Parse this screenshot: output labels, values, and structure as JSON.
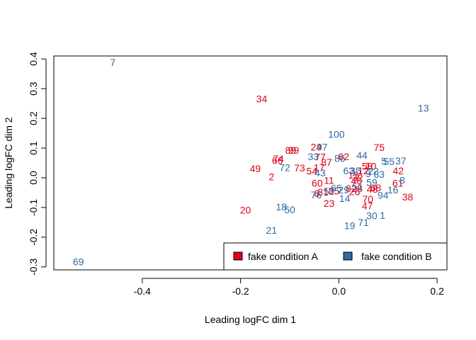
{
  "chart_data": {
    "type": "scatter",
    "title": "",
    "xlabel": "Leading logFC dim 1",
    "ylabel": "Leading logFC dim 2",
    "xlim": [
      -0.58,
      0.22
    ],
    "ylim": [
      -0.31,
      0.41
    ],
    "x_ticks": [
      "-0.4",
      "-0.2",
      "0.0",
      "0.2"
    ],
    "x_tick_values": [
      -0.4,
      -0.2,
      0.0,
      0.2
    ],
    "y_ticks": [
      "-0.3",
      "-0.2",
      "-0.1",
      "0.0",
      "0.1",
      "0.2",
      "0.3",
      "0.4"
    ],
    "y_tick_values": [
      -0.3,
      -0.2,
      -0.1,
      0.0,
      0.1,
      0.2,
      0.3,
      0.4
    ],
    "grid": false,
    "legend": {
      "placement": "bottom-right",
      "entries": [
        {
          "name": "fake condition A",
          "color": "#e0001a"
        },
        {
          "name": "fake condition B",
          "color": "#2f6aa3"
        }
      ]
    },
    "series": [
      {
        "name": "fake condition A",
        "color": "#e0001a",
        "points": [
          {
            "label": "34",
            "x": -0.157,
            "y": 0.266
          },
          {
            "label": "99",
            "x": -0.092,
            "y": 0.093
          },
          {
            "label": "89",
            "x": -0.098,
            "y": 0.093
          },
          {
            "label": "24",
            "x": -0.046,
            "y": 0.104
          },
          {
            "label": "75",
            "x": 0.082,
            "y": 0.102
          },
          {
            "label": "74",
            "x": -0.123,
            "y": 0.064
          },
          {
            "label": "66",
            "x": -0.125,
            "y": 0.058
          },
          {
            "label": "77",
            "x": -0.038,
            "y": 0.07
          },
          {
            "label": "62",
            "x": 0.01,
            "y": 0.072
          },
          {
            "label": "87",
            "x": -0.025,
            "y": 0.052
          },
          {
            "label": "49",
            "x": -0.17,
            "y": 0.031
          },
          {
            "label": "73",
            "x": -0.08,
            "y": 0.033
          },
          {
            "label": "54",
            "x": -0.055,
            "y": 0.022
          },
          {
            "label": "2",
            "x": -0.137,
            "y": 0.004
          },
          {
            "label": "17",
            "x": -0.04,
            "y": 0.035
          },
          {
            "label": "42",
            "x": 0.121,
            "y": 0.024
          },
          {
            "label": "58",
            "x": 0.058,
            "y": 0.039
          },
          {
            "label": "10",
            "x": 0.065,
            "y": 0.039
          },
          {
            "label": "12",
            "x": 0.05,
            "y": 0.024
          },
          {
            "label": "15",
            "x": 0.03,
            "y": 0.01
          },
          {
            "label": "32",
            "x": 0.038,
            "y": 0.0
          },
          {
            "label": "40",
            "x": 0.036,
            "y": -0.01
          },
          {
            "label": "11",
            "x": -0.02,
            "y": -0.008
          },
          {
            "label": "61",
            "x": 0.12,
            "y": -0.018
          },
          {
            "label": "60",
            "x": -0.044,
            "y": -0.018
          },
          {
            "label": "68",
            "x": 0.075,
            "y": -0.033
          },
          {
            "label": "48",
            "x": 0.068,
            "y": -0.038
          },
          {
            "label": "28",
            "x": 0.037,
            "y": -0.036
          },
          {
            "label": "26",
            "x": 0.032,
            "y": -0.046
          },
          {
            "label": "82",
            "x": 0.025,
            "y": -0.036
          },
          {
            "label": "85",
            "x": -0.01,
            "y": -0.044
          },
          {
            "label": "38",
            "x": 0.14,
            "y": -0.065
          },
          {
            "label": "70",
            "x": 0.059,
            "y": -0.071
          },
          {
            "label": "23",
            "x": -0.02,
            "y": -0.086
          },
          {
            "label": "47",
            "x": 0.058,
            "y": -0.094
          },
          {
            "label": "20",
            "x": -0.19,
            "y": -0.109
          },
          {
            "label": "81",
            "x": -0.032,
            "y": -0.048
          },
          {
            "label": "6",
            "x": -0.045,
            "y": -0.052
          }
        ]
      },
      {
        "name": "fake condition B",
        "color": "#2f6aa3",
        "points": [
          {
            "label": "7",
            "x": -0.46,
            "y": 0.389
          },
          {
            "label": "13",
            "x": 0.172,
            "y": 0.235
          },
          {
            "label": "100",
            "x": -0.005,
            "y": 0.147
          },
          {
            "label": "97",
            "x": -0.034,
            "y": 0.104
          },
          {
            "label": "33",
            "x": -0.052,
            "y": 0.071
          },
          {
            "label": "86",
            "x": 0.002,
            "y": 0.066
          },
          {
            "label": "44",
            "x": 0.047,
            "y": 0.076
          },
          {
            "label": "55",
            "x": 0.102,
            "y": 0.055
          },
          {
            "label": "37",
            "x": 0.126,
            "y": 0.057
          },
          {
            "label": "5",
            "x": 0.092,
            "y": 0.056
          },
          {
            "label": "72",
            "x": -0.11,
            "y": 0.034
          },
          {
            "label": "63",
            "x": 0.02,
            "y": 0.024
          },
          {
            "label": "35",
            "x": 0.034,
            "y": 0.024
          },
          {
            "label": "22",
            "x": 0.07,
            "y": 0.023
          },
          {
            "label": "9",
            "x": 0.06,
            "y": 0.014
          },
          {
            "label": "83",
            "x": 0.082,
            "y": 0.012
          },
          {
            "label": "43",
            "x": -0.038,
            "y": 0.017
          },
          {
            "label": "8",
            "x": 0.129,
            "y": -0.008
          },
          {
            "label": "59",
            "x": 0.067,
            "y": -0.016
          },
          {
            "label": "51",
            "x": 0.038,
            "y": -0.03
          },
          {
            "label": "16",
            "x": 0.11,
            "y": -0.041
          },
          {
            "label": "94",
            "x": 0.09,
            "y": -0.058
          },
          {
            "label": "76",
            "x": -0.046,
            "y": -0.057
          },
          {
            "label": "14",
            "x": 0.012,
            "y": -0.069
          },
          {
            "label": "30",
            "x": 0.067,
            "y": -0.128
          },
          {
            "label": "1",
            "x": 0.089,
            "y": -0.126
          },
          {
            "label": "71",
            "x": 0.05,
            "y": -0.15
          },
          {
            "label": "19",
            "x": 0.022,
            "y": -0.161
          },
          {
            "label": "18",
            "x": -0.117,
            "y": -0.098
          },
          {
            "label": "50",
            "x": -0.1,
            "y": -0.107
          },
          {
            "label": "21",
            "x": -0.137,
            "y": -0.177
          },
          {
            "label": "69",
            "x": -0.53,
            "y": -0.282
          },
          {
            "label": "29",
            "x": 0.01,
            "y": -0.04
          },
          {
            "label": "52",
            "x": -0.02,
            "y": -0.045
          },
          {
            "label": "65",
            "x": -0.005,
            "y": -0.035
          }
        ]
      }
    ]
  }
}
